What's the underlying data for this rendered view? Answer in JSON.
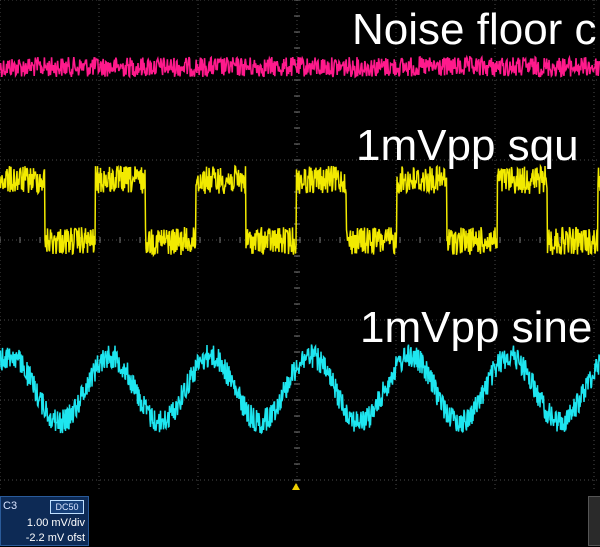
{
  "labels": {
    "noise": "Noise floor c",
    "square": "1mVpp squ",
    "sine": "1mVpp sine"
  },
  "channel": {
    "name": "C3",
    "coupling": "DC50",
    "vdiv": "1.00 mV/div",
    "offset": "-2.2 mV ofst"
  },
  "colors": {
    "background": "#000000",
    "grid": "#4a4a4a",
    "noise_trace": "#ff1a8c",
    "square_trace": "#f2ea00",
    "sine_trace": "#1ee6f0",
    "channel_box": "#0d2a55",
    "trigger_marker": "#f0d000"
  },
  "icons": {
    "trigger": "trigger-position-marker-icon"
  }
}
